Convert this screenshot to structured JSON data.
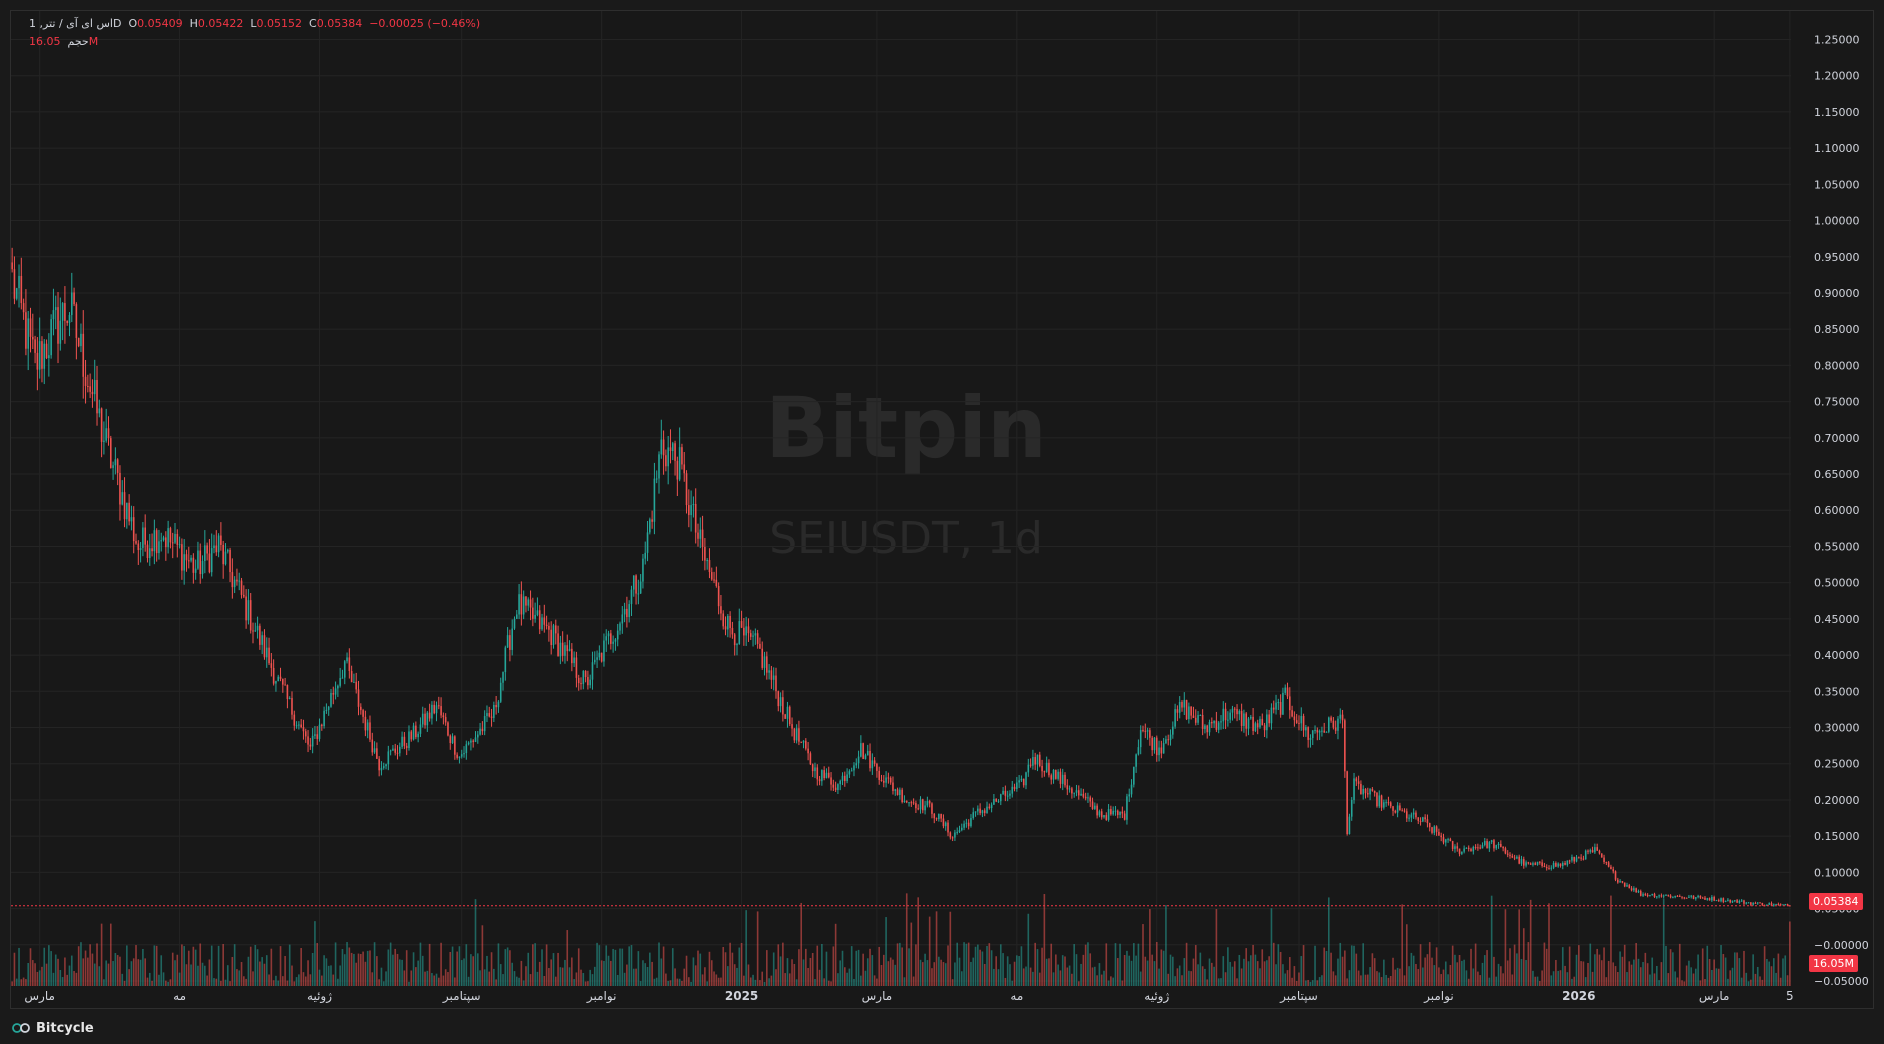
{
  "legend": {
    "symbol": "اس ای آی / تتر, 1D",
    "open_key": "O",
    "open": "0.05409",
    "high_key": "H",
    "high": "0.05422",
    "low_key": "L",
    "low": "0.05152",
    "close_key": "C",
    "close": "0.05384",
    "change": "−0.00025 (−0.46%)",
    "volume_label": "حجم",
    "volume": "16.05M"
  },
  "watermark": {
    "brand": "Bitpin",
    "ticker": "SEIUSDT, 1d"
  },
  "last_price_tag": "0.05384",
  "volume_tag": "16.05M",
  "footer": {
    "brand": "Bitcycle"
  },
  "colors": {
    "up": "#26a69a",
    "down": "#ef5350",
    "tag": "#f23645",
    "grid": "#242424",
    "bg": "#181818"
  },
  "chart_data": {
    "type": "candlestick",
    "ylim": [
      -0.05,
      1.27
    ],
    "y_ticks": [
      "1.25000",
      "1.20000",
      "1.15000",
      "1.10000",
      "1.05000",
      "1.00000",
      "0.95000",
      "0.90000",
      "0.85000",
      "0.80000",
      "0.75000",
      "0.70000",
      "0.65000",
      "0.60000",
      "0.55000",
      "0.50000",
      "0.45000",
      "0.40000",
      "0.35000",
      "0.30000",
      "0.25000",
      "0.20000",
      "0.15000",
      "0.10000",
      "0.05000",
      "−0.00000",
      "−0.05000"
    ],
    "x_ticks": [
      {
        "label": "مارس",
        "i": 12
      },
      {
        "label": "مه",
        "i": 73
      },
      {
        "label": "ژوئیه",
        "i": 134
      },
      {
        "label": "سپتامبر",
        "i": 196
      },
      {
        "label": "نوامبر",
        "i": 257
      },
      {
        "label": "2025",
        "i": 318
      },
      {
        "label": "مارس",
        "i": 377
      },
      {
        "label": "مه",
        "i": 438
      },
      {
        "label": "ژوئیه",
        "i": 499
      },
      {
        "label": "سپتامبر",
        "i": 561
      },
      {
        "label": "نوامبر",
        "i": 622
      },
      {
        "label": "2026",
        "i": 683
      },
      {
        "label": "مارس",
        "i": 742
      },
      {
        "label": "5",
        "i": 775
      }
    ],
    "n_candles": 776,
    "close_anchors": [
      [
        0,
        0.92
      ],
      [
        10,
        0.8
      ],
      [
        20,
        0.86
      ],
      [
        25,
        0.88
      ],
      [
        40,
        0.7
      ],
      [
        55,
        0.55
      ],
      [
        65,
        0.57
      ],
      [
        80,
        0.52
      ],
      [
        90,
        0.55
      ],
      [
        100,
        0.48
      ],
      [
        115,
        0.37
      ],
      [
        130,
        0.27
      ],
      [
        145,
        0.39
      ],
      [
        160,
        0.25
      ],
      [
        175,
        0.29
      ],
      [
        185,
        0.33
      ],
      [
        195,
        0.26
      ],
      [
        210,
        0.32
      ],
      [
        220,
        0.47
      ],
      [
        235,
        0.43
      ],
      [
        250,
        0.36
      ],
      [
        265,
        0.45
      ],
      [
        275,
        0.52
      ],
      [
        283,
        0.69
      ],
      [
        290,
        0.67
      ],
      [
        300,
        0.55
      ],
      [
        312,
        0.44
      ],
      [
        325,
        0.41
      ],
      [
        340,
        0.3
      ],
      [
        350,
        0.24
      ],
      [
        360,
        0.22
      ],
      [
        370,
        0.27
      ],
      [
        380,
        0.23
      ],
      [
        390,
        0.2
      ],
      [
        400,
        0.19
      ],
      [
        410,
        0.15
      ],
      [
        420,
        0.18
      ],
      [
        430,
        0.2
      ],
      [
        440,
        0.22
      ],
      [
        445,
        0.26
      ],
      [
        460,
        0.22
      ],
      [
        475,
        0.18
      ],
      [
        485,
        0.18
      ],
      [
        492,
        0.3
      ],
      [
        500,
        0.27
      ],
      [
        510,
        0.33
      ],
      [
        520,
        0.3
      ],
      [
        530,
        0.32
      ],
      [
        545,
        0.3
      ],
      [
        555,
        0.34
      ],
      [
        565,
        0.29
      ],
      [
        580,
        0.31
      ],
      [
        582,
        0.16
      ],
      [
        585,
        0.22
      ],
      [
        600,
        0.19
      ],
      [
        615,
        0.17
      ],
      [
        630,
        0.13
      ],
      [
        645,
        0.14
      ],
      [
        660,
        0.11
      ],
      [
        675,
        0.11
      ],
      [
        690,
        0.13
      ],
      [
        700,
        0.09
      ],
      [
        710,
        0.07
      ],
      [
        740,
        0.064
      ],
      [
        760,
        0.057
      ],
      [
        775,
        0.054
      ]
    ],
    "series_notes": [
      "close line",
      "volume histogram"
    ],
    "last": {
      "open": 0.05409,
      "high": 0.05422,
      "low": 0.05152,
      "close": 0.05384,
      "volume": "16.05M"
    }
  }
}
